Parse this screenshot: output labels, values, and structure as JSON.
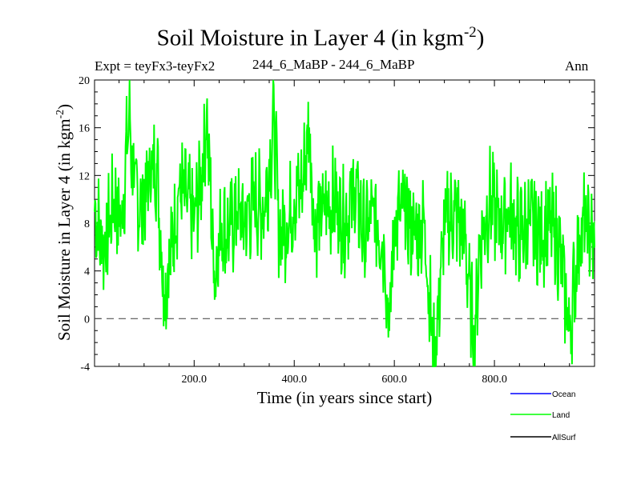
{
  "chart_data": {
    "type": "line",
    "title_main": "Soil Moisture in Layer 4 (in kgm",
    "title_sup": "-2",
    "title_close": ")",
    "expt_label": "Expt = teyFx3-teyFx2",
    "runs_label": "244_6_MaBP - 244_6_MaBP",
    "season_label": "Ann",
    "xlabel": "Time (in years since start)",
    "ylabel_main": "Soil Moisture in Layer 4 (in kgm",
    "ylabel_sup": "-2",
    "ylabel_close": ")",
    "xlim": [
      1,
      1000
    ],
    "ylim": [
      -4,
      20
    ],
    "x_ticks": [
      200,
      400,
      600,
      800
    ],
    "x_tick_labels": [
      "200.0",
      "400.0",
      "600.0",
      "800.0"
    ],
    "y_ticks": [
      -4,
      0,
      4,
      8,
      12,
      16,
      20
    ],
    "y_tick_labels": [
      "-4",
      "0",
      "4",
      "8",
      "12",
      "16",
      "20"
    ],
    "reference_line_y": 0,
    "legend": [
      {
        "name": "Ocean",
        "color": "#0000ff"
      },
      {
        "name": "Land",
        "color": "#00ff00"
      },
      {
        "name": "AllSurf",
        "color": "#000000"
      }
    ],
    "series": [
      {
        "name": "Land",
        "color": "#00ff00",
        "x": [
          1,
          20,
          40,
          55,
          70,
          80,
          95,
          110,
          125,
          140,
          155,
          170,
          185,
          200,
          215,
          225,
          240,
          255,
          270,
          285,
          300,
          320,
          340,
          360,
          370,
          385,
          400,
          415,
          430,
          440,
          460,
          480,
          500,
          520,
          540,
          560,
          580,
          590,
          600,
          620,
          640,
          660,
          680,
          700,
          720,
          740,
          760,
          770,
          790,
          810,
          830,
          850,
          870,
          890,
          910,
          930,
          950,
          970,
          985,
          1000
        ],
        "values": [
          9,
          6,
          10,
          8,
          17.2,
          11,
          9,
          12,
          13,
          2,
          6,
          11,
          10,
          8,
          12,
          17.3,
          4,
          8,
          7,
          9,
          8,
          10,
          9,
          16.6,
          7,
          8,
          10,
          11,
          16,
          8,
          9,
          10,
          8,
          11,
          7,
          9,
          6,
          -1,
          8,
          9,
          7,
          8,
          -4,
          8,
          9,
          7,
          -2,
          6,
          10,
          8,
          9,
          7,
          8,
          7,
          8,
          6,
          -1,
          7,
          8,
          6
        ]
      }
    ]
  }
}
